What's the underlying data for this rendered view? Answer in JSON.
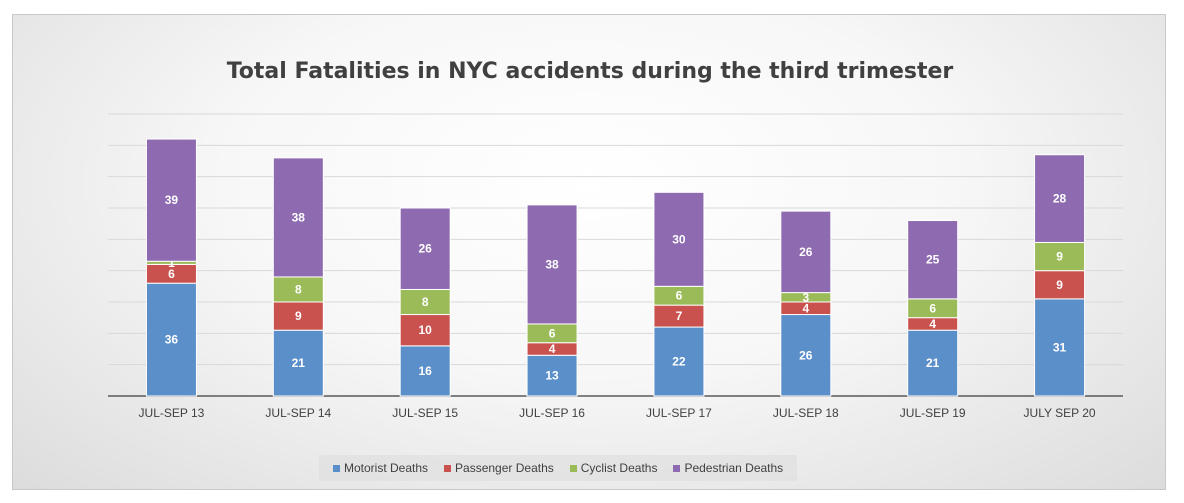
{
  "chart_data": {
    "type": "bar",
    "stacked": true,
    "title": "Total Fatalities in NYC accidents during the third trimester",
    "categories": [
      "JUL-SEP 13",
      "JUL-SEP 14",
      "JUL-SEP 15",
      "JUL-SEP 16",
      "JUL-SEP 17",
      "JUL-SEP 18",
      "JUL-SEP 19",
      "JULY SEP 20"
    ],
    "series": [
      {
        "name": "Motorist Deaths",
        "color": "#5b8fc9",
        "values": [
          36,
          21,
          16,
          13,
          22,
          26,
          21,
          31
        ]
      },
      {
        "name": "Passenger Deaths",
        "color": "#c9514e",
        "values": [
          6,
          9,
          10,
          4,
          7,
          4,
          4,
          9
        ]
      },
      {
        "name": "Cyclist Deaths",
        "color": "#9bbb59",
        "values": [
          1,
          8,
          8,
          6,
          6,
          3,
          6,
          9
        ]
      },
      {
        "name": "Pedestrian Deaths",
        "color": "#8e6bb0",
        "values": [
          39,
          38,
          26,
          38,
          30,
          26,
          25,
          28
        ]
      }
    ],
    "ylim": [
      0,
      90
    ],
    "grid": true,
    "legend_position": "bottom"
  }
}
